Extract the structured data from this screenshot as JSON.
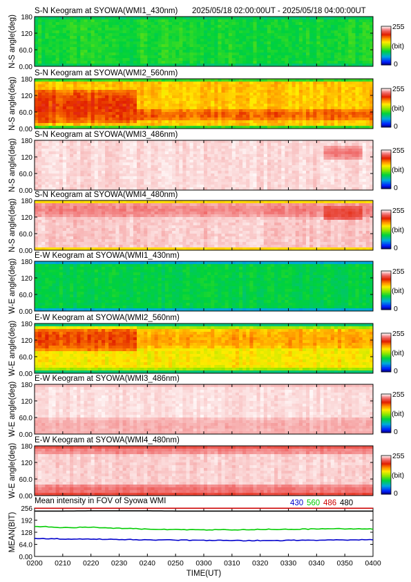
{
  "header": {
    "time_range": "2025/05/18 02:00:00UT - 2025/05/18 04:00:00UT"
  },
  "colorbar": {
    "max_label": "255",
    "unit_label": "(bit)",
    "min_label": "0"
  },
  "chart_data": [
    {
      "type": "heatmap",
      "title": "S-N Keogram at SYOWA(WMI1_430nm)",
      "ylabel": "N-S angle(deg)",
      "yticks": [
        "180",
        "120",
        "60.0",
        "0.00"
      ],
      "ylim": [
        0,
        180
      ],
      "colormap": "rainbow (blue-green-yellow-red-white)",
      "clim": [
        0,
        255
      ],
      "base_level": 95,
      "edge_level": 20,
      "edge_width_deg": 6,
      "variation": 12,
      "features": []
    },
    {
      "type": "heatmap",
      "title": "S-N Keogram at SYOWA(WMI2_560nm)",
      "ylabel": "N-S angle(deg)",
      "yticks": [
        "180",
        "120",
        "60.0",
        "0.00"
      ],
      "ylim": [
        0,
        180
      ],
      "colormap": "rainbow (blue-green-yellow-red-white)",
      "clim": [
        0,
        255
      ],
      "base_level": 160,
      "edge_level": 5,
      "edge_width_deg": 8,
      "variation": 14,
      "features": [
        {
          "t_start": 0,
          "t_end": 36,
          "deg_low": 20,
          "deg_high": 140,
          "level": 195
        },
        {
          "t_start": 36,
          "t_end": 120,
          "deg_low": 30,
          "deg_high": 70,
          "level": 185
        }
      ]
    },
    {
      "type": "heatmap",
      "title": "S-N Keogram at SYOWA(WMI3_486nm)",
      "ylabel": "N-S angle(deg)",
      "yticks": [
        "180",
        "120",
        "60.0",
        "0.00"
      ],
      "ylim": [
        0,
        180
      ],
      "colormap": "rainbow (blue-green-yellow-red-white)",
      "clim": [
        0,
        255
      ],
      "base_level": 248,
      "edge_level": 5,
      "edge_width_deg": 5,
      "variation": 6,
      "features": [
        {
          "t_start": 102,
          "t_end": 116,
          "deg_low": 110,
          "deg_high": 160,
          "level": 230
        }
      ]
    },
    {
      "type": "heatmap",
      "title": "S-N Keogram at SYOWA(WMI4_480nm)",
      "ylabel": "N-S angle(deg)",
      "yticks": [
        "180",
        "120",
        "60.0",
        "0.00"
      ],
      "ylim": [
        0,
        180
      ],
      "colormap": "rainbow (blue-green-yellow-red-white)",
      "clim": [
        0,
        255
      ],
      "base_level": 245,
      "edge_level": 5,
      "edge_width_deg": 8,
      "variation": 7,
      "features": [
        {
          "t_start": 0,
          "t_end": 120,
          "deg_low": 120,
          "deg_high": 170,
          "level": 232
        },
        {
          "t_start": 102,
          "t_end": 116,
          "deg_low": 110,
          "deg_high": 160,
          "level": 215
        }
      ]
    },
    {
      "type": "heatmap",
      "title": "E-W Keogram at SYOWA(WMI1_430nm)",
      "ylabel": "W-E angle(deg)",
      "yticks": [
        "180",
        "120",
        "60.0",
        "0.00"
      ],
      "ylim": [
        0,
        180
      ],
      "colormap": "rainbow (blue-green-yellow-red-white)",
      "clim": [
        0,
        255
      ],
      "base_level": 88,
      "edge_level": 15,
      "edge_width_deg": 9,
      "variation": 10,
      "features": []
    },
    {
      "type": "heatmap",
      "title": "E-W Keogram at SYOWA(WMI2_560nm)",
      "ylabel": "W-E angle(deg)",
      "yticks": [
        "180",
        "120",
        "60.0",
        "0.00"
      ],
      "ylim": [
        0,
        180
      ],
      "colormap": "rainbow (blue-green-yellow-red-white)",
      "clim": [
        0,
        255
      ],
      "base_level": 150,
      "edge_level": 55,
      "edge_width_deg": 20,
      "variation": 14,
      "features": [
        {
          "t_start": 0,
          "t_end": 36,
          "deg_low": 80,
          "deg_high": 170,
          "level": 192
        },
        {
          "t_start": 36,
          "t_end": 120,
          "deg_low": 90,
          "deg_high": 160,
          "level": 170
        }
      ]
    },
    {
      "type": "heatmap",
      "title": "E-W Keogram at SYOWA(WMI3_486nm)",
      "ylabel": "W-E angle(deg)",
      "yticks": [
        "180",
        "120",
        "60.0",
        "0.00"
      ],
      "ylim": [
        0,
        180
      ],
      "colormap": "rainbow (blue-green-yellow-red-white)",
      "clim": [
        0,
        255
      ],
      "base_level": 249,
      "edge_level": 238,
      "edge_width_deg": 12,
      "variation": 5,
      "features": [
        {
          "t_start": 0,
          "t_end": 120,
          "deg_low": 0,
          "deg_high": 60,
          "level": 240
        }
      ]
    },
    {
      "type": "heatmap",
      "title": "E-W Keogram at SYOWA(WMI4_480nm)",
      "ylabel": "W-E angle(deg)",
      "yticks": [
        "180",
        "120",
        "60.0",
        "0.00"
      ],
      "ylim": [
        0,
        180
      ],
      "colormap": "rainbow (blue-green-yellow-red-white)",
      "clim": [
        0,
        255
      ],
      "base_level": 246,
      "edge_level": 120,
      "edge_width_deg": 6,
      "variation": 6,
      "features": [
        {
          "t_start": 0,
          "t_end": 120,
          "deg_low": 0,
          "deg_high": 40,
          "level": 228
        },
        {
          "t_start": 0,
          "t_end": 120,
          "deg_low": 150,
          "deg_high": 175,
          "level": 232
        }
      ]
    },
    {
      "type": "line",
      "title": "Mean intensity in FOV of Syowa WMI",
      "ylabel": "MEAN(BIT)",
      "xlabel": "TIME(UT)",
      "yticks": [
        "256",
        "192",
        "128",
        "64.0",
        "0.00"
      ],
      "ylim": [
        0,
        256
      ],
      "x_ticks": [
        "0200",
        "0210",
        "0220",
        "0230",
        "0240",
        "0250",
        "0300",
        "0310",
        "0320",
        "0330",
        "0340",
        "0350",
        "0400"
      ],
      "x": [
        0,
        10,
        20,
        30,
        40,
        50,
        60,
        70,
        80,
        90,
        100,
        110,
        120
      ],
      "series": [
        {
          "name": "430",
          "color": "#0000cc",
          "values": [
            95,
            92,
            92,
            90,
            88,
            86,
            85,
            84,
            84,
            85,
            86,
            87,
            89
          ]
        },
        {
          "name": "560",
          "color": "#00cc00",
          "values": [
            160,
            152,
            155,
            149,
            145,
            142,
            141,
            141,
            143,
            144,
            145,
            146,
            145
          ]
        },
        {
          "name": "486",
          "color": "#cc0000",
          "values": [
            255,
            255,
            255,
            255,
            255,
            255,
            255,
            255,
            255,
            255,
            255,
            255,
            255
          ]
        },
        {
          "name": "480",
          "color": "#000000",
          "values": [
            240,
            240,
            241,
            241,
            241,
            240,
            240,
            240,
            240,
            240,
            240,
            240,
            240
          ]
        }
      ]
    }
  ]
}
